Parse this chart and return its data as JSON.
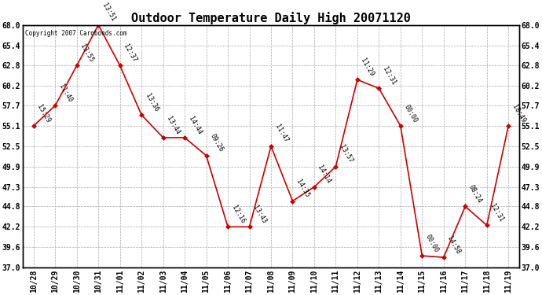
{
  "title": "Outdoor Temperature Daily High 20071120",
  "copyright_text": "Copyright 2007 Carobonds.com",
  "x_labels": [
    "10/28",
    "10/29",
    "10/30",
    "10/31",
    "11/01",
    "11/02",
    "11/03",
    "11/04",
    "11/05",
    "11/06",
    "11/07",
    "11/08",
    "11/09",
    "11/10",
    "11/11",
    "11/12",
    "11/13",
    "11/14",
    "11/15",
    "11/16",
    "11/17",
    "11/18",
    "11/19"
  ],
  "points": [
    [
      0,
      55.1,
      "15:29"
    ],
    [
      1,
      57.7,
      "11:40"
    ],
    [
      2,
      62.8,
      "13:55"
    ],
    [
      3,
      68.0,
      "13:51"
    ],
    [
      4,
      62.8,
      "12:37"
    ],
    [
      5,
      56.5,
      "13:36"
    ],
    [
      6,
      53.6,
      "13:44"
    ],
    [
      7,
      53.6,
      "14:44"
    ],
    [
      8,
      51.3,
      "09:26"
    ],
    [
      9,
      42.2,
      "12:16"
    ],
    [
      10,
      42.2,
      "13:43"
    ],
    [
      11,
      52.5,
      "11:47"
    ],
    [
      12,
      45.5,
      "14:35"
    ],
    [
      13,
      47.3,
      "14:14"
    ],
    [
      14,
      49.9,
      "13:57"
    ],
    [
      15,
      61.0,
      "11:29"
    ],
    [
      16,
      59.9,
      "12:31"
    ],
    [
      17,
      55.1,
      "00:00"
    ],
    [
      18,
      38.5,
      "00:00"
    ],
    [
      19,
      38.3,
      "14:58"
    ],
    [
      20,
      44.8,
      "08:24"
    ],
    [
      21,
      42.4,
      "12:31"
    ],
    [
      22,
      55.1,
      "18:49"
    ]
  ],
  "ytick_values": [
    37.0,
    39.6,
    42.2,
    44.8,
    47.3,
    49.9,
    52.5,
    55.1,
    57.7,
    60.2,
    62.8,
    65.4,
    68.0
  ],
  "ylim_min": 37.0,
  "ylim_max": 68.0,
  "line_color": "#cc0000",
  "marker_color": "#cc0000",
  "grid_color": "#aaaaaa",
  "bg_color": "#ffffff",
  "title_fontsize": 11,
  "tick_fontsize": 7,
  "annot_fontsize": 6,
  "figwidth": 6.9,
  "figheight": 3.75,
  "dpi": 100
}
